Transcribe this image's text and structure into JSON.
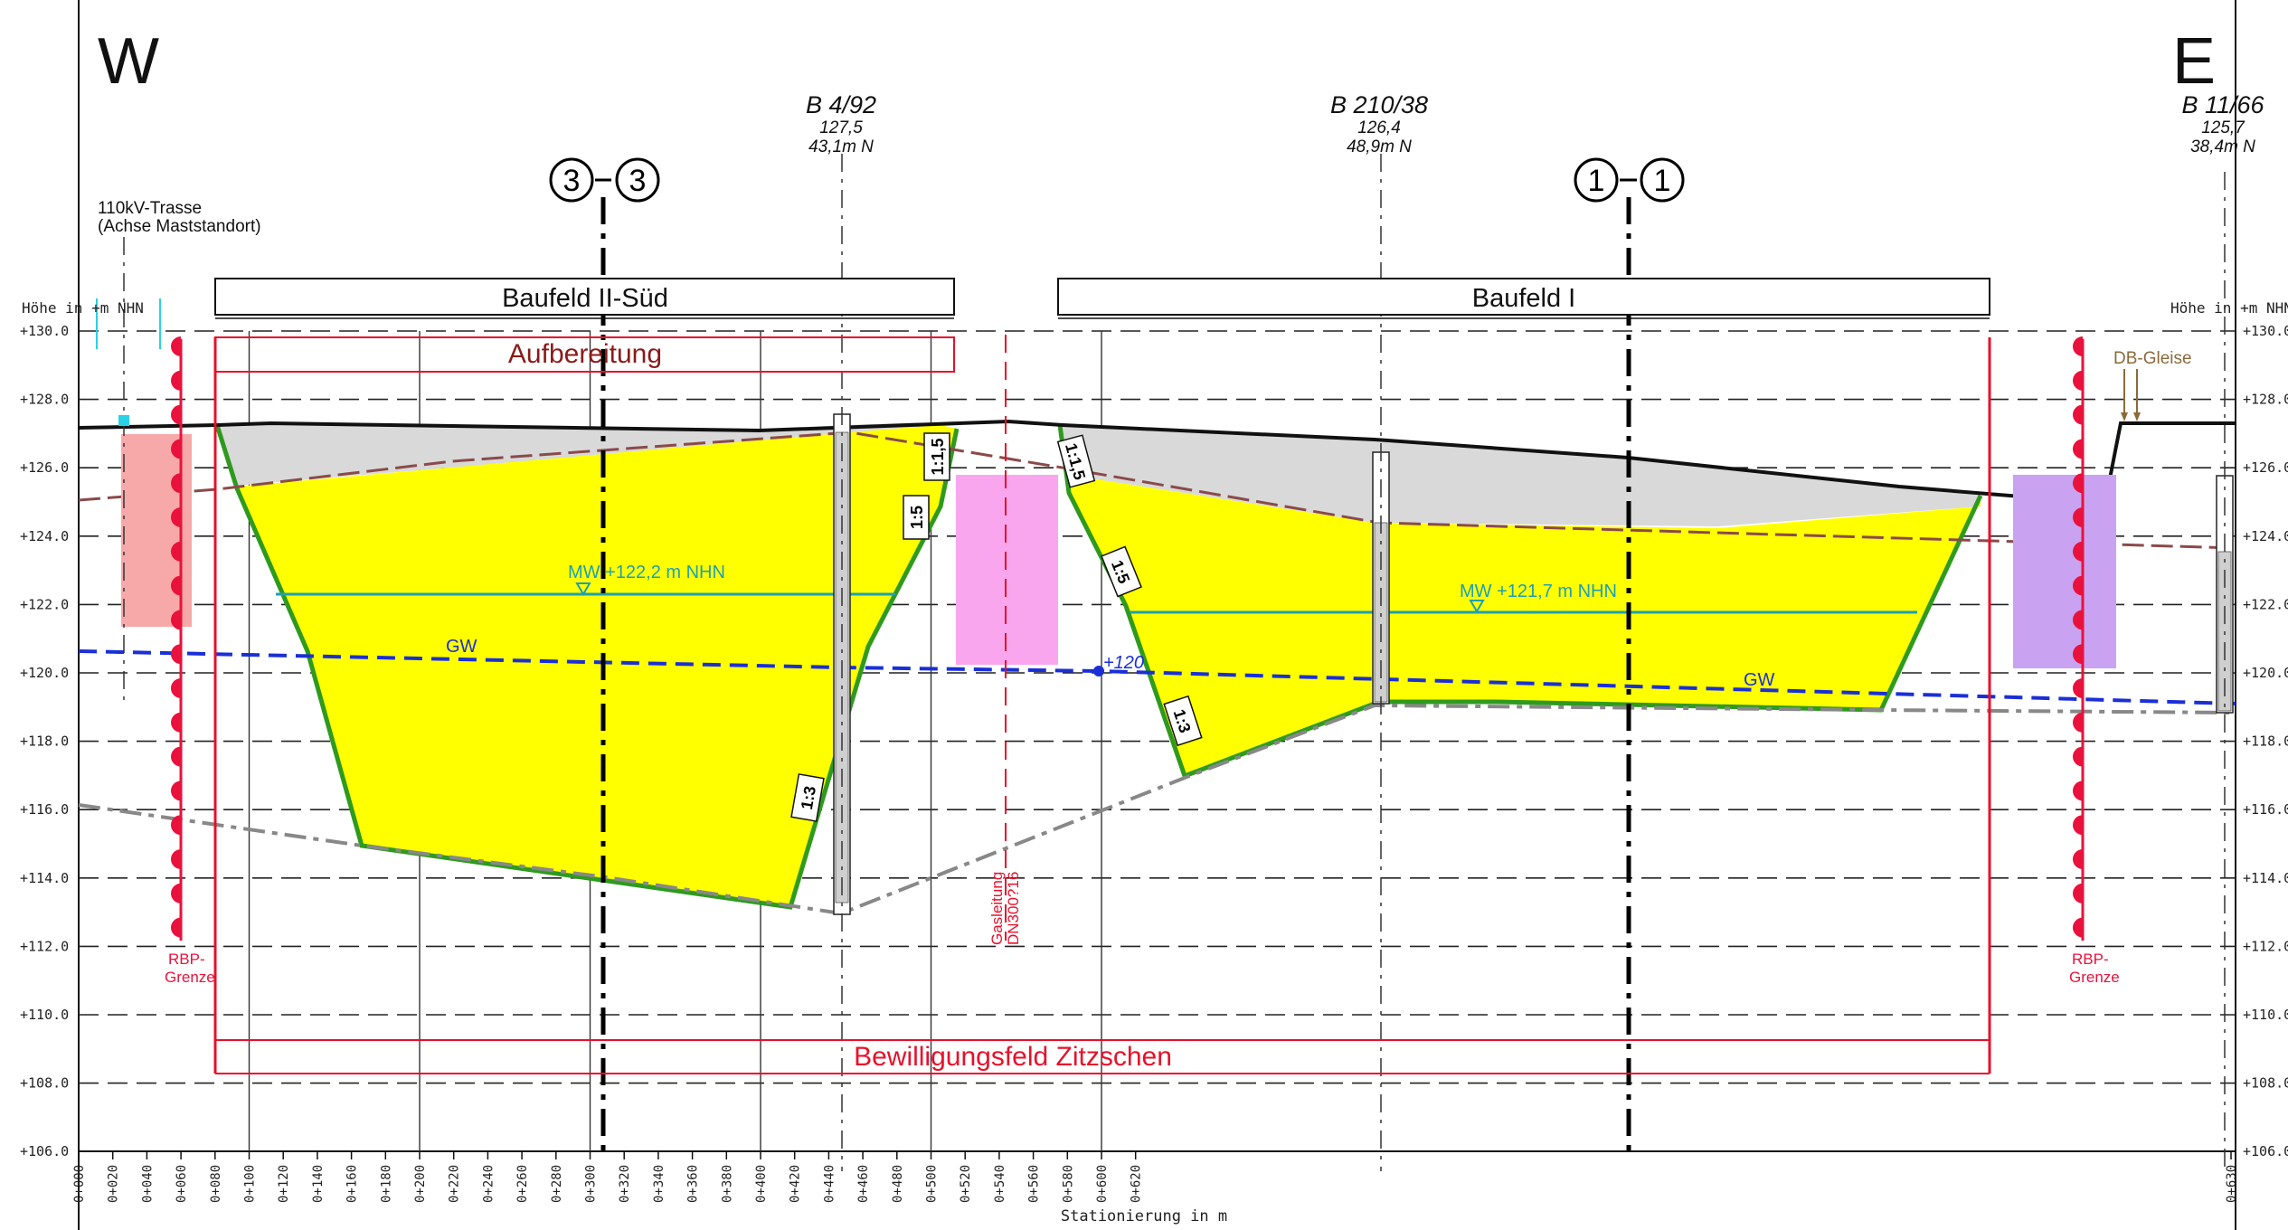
{
  "directions": {
    "west": "W",
    "east": "E"
  },
  "axis": {
    "ylabel_left": "Höhe in +m NHN",
    "ylabel_right": "Höhe in +m NHN",
    "xlabel": "Stationierung in m",
    "y_ticks": [
      "+130.0",
      "+128.0",
      "+126.0",
      "+124.0",
      "+122.0",
      "+120.0",
      "+118.0",
      "+116.0",
      "+114.0",
      "+112.0",
      "+110.0",
      "+108.0",
      "+106.0"
    ],
    "x_ticks": [
      "0+000",
      "0+020",
      "0+040",
      "0+060",
      "0+080",
      "0+100",
      "0+120",
      "0+140",
      "0+160",
      "0+180",
      "0+200",
      "0+220",
      "0+240",
      "0+260",
      "0+280",
      "0+300",
      "0+320",
      "0+340",
      "0+360",
      "0+380",
      "0+400",
      "0+420",
      "0+440",
      "0+460",
      "0+480",
      "0+500",
      "0+520",
      "0+540",
      "0+560",
      "0+580",
      "0+600",
      "0+620",
      "0+630"
    ]
  },
  "boreholes": [
    {
      "name": "B 4/92",
      "elev": "127,5",
      "depth": "43,1m N"
    },
    {
      "name": "B 210/38",
      "elev": "126,4",
      "depth": "48,9m N"
    },
    {
      "name": "B 11/66",
      "elev": "125,7",
      "depth": "38,4m N"
    }
  ],
  "sections": [
    {
      "a": "3",
      "b": "3"
    },
    {
      "a": "1",
      "b": "1"
    }
  ],
  "power_line": {
    "line1": "110kV-Trasse",
    "line2": "(Achse Maststandort)"
  },
  "fields": {
    "baufeld_2": "Baufeld II-Süd",
    "baufeld_1": "Baufeld I",
    "aufbereitung": "Aufbereitung",
    "bewilligungsfeld": "Bewilligungsfeld  Zitzschen"
  },
  "water": {
    "mw_left": "MW +122,2 m NHN",
    "mw_right": "MW +121,7 m NHN",
    "gw": "GW",
    "gw_level": "+120"
  },
  "slopes": [
    "1:1,5",
    "1:5",
    "1:3",
    "1:1,5",
    "1:5",
    "1:3"
  ],
  "rbp": {
    "line1": "RBP-",
    "line2": "Grenze"
  },
  "gas": {
    "line1": "Gasleitung",
    "line2": "DN300?16"
  },
  "db_gleise": "DB-Gleise",
  "colors": {
    "fill_yellow": "#ffff00",
    "slope_green": "#2e9a1e",
    "overburden_grey": "#d9d9d9",
    "groundwater_blue": "#1a2fd6",
    "mean_water_teal": "#1ea0b4",
    "rbp_red": "#e8123c",
    "field_red": "#e8102a",
    "aufbereitung_text": "#8b1a1a",
    "pink_block": "#f9a6ef",
    "salmon_block": "#f7a9a9",
    "purple_block": "#c9a3f2"
  }
}
